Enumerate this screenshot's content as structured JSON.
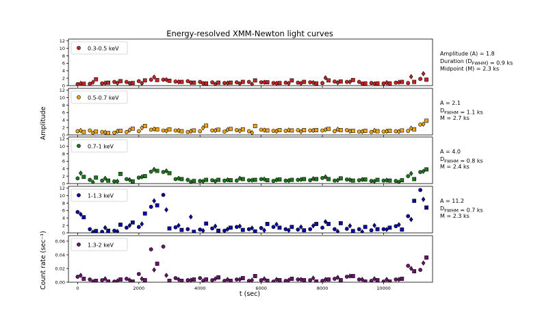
{
  "figure": {
    "title": "Energy-resolved XMM-Newton light curves",
    "xlabel": "t (sec)",
    "ylabel_upper": "Amplitude",
    "ylabel_lower": "Count rate (sec⁻¹)"
  },
  "chart_data": [
    {
      "type": "scatter",
      "legend": "0.3-0.5 keV",
      "legend_position": "top-left",
      "color": "#cc2222",
      "xlim": [
        -300,
        11600
      ],
      "ylim": [
        0,
        12.5
      ],
      "yticks": [
        "0",
        "2",
        "4",
        "6",
        "8",
        "10",
        "12"
      ],
      "annotation": [
        "Amplitude (A) = 1.8",
        "Duration (D_FWHM) = 0.9 ks",
        "Midpoint (M) = 2.3 ks"
      ],
      "series": [
        {
          "marker": "circle",
          "x": [
            0,
            400,
            800,
            1200,
            1600,
            2000,
            2400,
            2800,
            3200,
            3600,
            4000,
            4400,
            4800,
            5200,
            5600,
            6000,
            6400,
            6800,
            7200,
            7600,
            8000,
            8400,
            8800,
            9200,
            9600,
            10000,
            10400,
            10800,
            11200
          ],
          "y": [
            0.4,
            0.5,
            0.6,
            1.0,
            1.0,
            1.2,
            1.6,
            1.6,
            1.1,
            1.2,
            1.0,
            0.9,
            0.7,
            0.9,
            1.0,
            0.9,
            0.7,
            0.8,
            0.8,
            0.9,
            0.7,
            1.1,
            1.0,
            1.0,
            0.7,
            0.6,
            0.8,
            0.7,
            1.8
          ]
        },
        {
          "marker": "square",
          "x": [
            200,
            600,
            1000,
            1400,
            1800,
            2200,
            2600,
            3000,
            3400,
            3800,
            4200,
            4600,
            5000,
            5400,
            5800,
            6200,
            6600,
            7000,
            7400,
            7800,
            8200,
            8600,
            9000,
            9400,
            9800,
            10200,
            10600,
            11000,
            11400
          ],
          "y": [
            0.5,
            1.7,
            0.8,
            1.2,
            0.7,
            1.4,
            1.5,
            1.3,
            1.0,
            0.8,
            0.6,
            0.8,
            0.8,
            1.0,
            1.4,
            0.9,
            0.7,
            1.4,
            1.0,
            0.6,
            1.4,
            1.1,
            1.5,
            0.6,
            0.6,
            0.6,
            1.0,
            1.0,
            1.6
          ]
        },
        {
          "marker": "diamond",
          "x": [
            100,
            500,
            900,
            1300,
            1700,
            2100,
            2500,
            2900,
            3300,
            3700,
            4100,
            4500,
            4900,
            5300,
            5700,
            6100,
            6500,
            6900,
            7300,
            7700,
            8100,
            8500,
            8900,
            9300,
            9700,
            10100,
            10500,
            10900,
            11300
          ],
          "y": [
            0.6,
            0.9,
            0.7,
            0.7,
            0.6,
            0.6,
            2.3,
            1.6,
            1.0,
            0.8,
            0.6,
            0.4,
            0.7,
            0.5,
            0.4,
            0.9,
            0.6,
            0.6,
            0.6,
            0.8,
            2.1,
            0.8,
            1.0,
            0.5,
            0.5,
            0.8,
            0.9,
            2.4,
            3.2
          ]
        }
      ]
    },
    {
      "type": "scatter",
      "legend": "0.5-0.7 keV",
      "legend_position": "top-left",
      "color": "#f2a516",
      "xlim": [
        -300,
        11600
      ],
      "ylim": [
        0,
        12.5
      ],
      "yticks": [
        "0",
        "2",
        "4",
        "6",
        "8",
        "10",
        "12"
      ],
      "annotation": [
        "A = 2.1",
        "D_FWHM = 1.1 ks",
        "M = 2.7 ks"
      ],
      "series": [
        {
          "marker": "circle",
          "x": [
            0,
            400,
            800,
            1200,
            1600,
            2000,
            2400,
            2800,
            3200,
            3600,
            4000,
            4400,
            4800,
            5200,
            5600,
            6000,
            6400,
            6800,
            7200,
            7600,
            8000,
            8400,
            8800,
            9200,
            9600,
            10000,
            10400,
            10800,
            11200
          ],
          "y": [
            1.0,
            1.2,
            0.8,
            0.6,
            0.8,
            1.0,
            1.4,
            1.2,
            1.2,
            0.8,
            1.0,
            1.2,
            0.9,
            1.3,
            1.0,
            1.4,
            1.1,
            1.1,
            1.3,
            1.2,
            1.2,
            1.0,
            1.3,
            0.9,
            0.8,
            0.9,
            1.0,
            1.1,
            2.8
          ]
        },
        {
          "marker": "square",
          "x": [
            200,
            600,
            1000,
            1400,
            1800,
            2200,
            2600,
            3000,
            3400,
            3800,
            4200,
            4600,
            5000,
            5400,
            5800,
            6200,
            6600,
            7000,
            7400,
            7800,
            8200,
            8600,
            9000,
            9400,
            9800,
            10200,
            10600,
            11000,
            11400
          ],
          "y": [
            0.8,
            0.9,
            0.5,
            1.1,
            1.7,
            2.4,
            1.5,
            1.5,
            1.0,
            1.2,
            2.5,
            1.4,
            1.6,
            1.5,
            2.4,
            1.2,
            1.3,
            1.2,
            1.3,
            1.3,
            1.6,
            1.3,
            1.1,
            1.1,
            1.0,
            1.1,
            1.2,
            1.5,
            3.8
          ]
        },
        {
          "marker": "diamond",
          "x": [
            100,
            500,
            900,
            1300,
            1700,
            2100,
            2500,
            2900,
            3300,
            3700,
            4100,
            4500,
            4900,
            5300,
            5700,
            6100,
            6500,
            6900,
            7300,
            7700,
            8100,
            8500,
            8900,
            9300,
            9700,
            10100,
            10500,
            10900,
            11300
          ],
          "y": [
            1.2,
            0.5,
            0.7,
            1.0,
            1.3,
            1.9,
            1.6,
            1.1,
            1.2,
            1.0,
            1.9,
            1.2,
            1.4,
            1.1,
            0.6,
            1.3,
            1.0,
            1.3,
            0.9,
            1.2,
            1.4,
            1.5,
            1.0,
            0.9,
            1.2,
            1.0,
            0.9,
            1.8,
            2.9
          ]
        }
      ]
    },
    {
      "type": "scatter",
      "legend": "0.7-1 keV",
      "legend_position": "top-left",
      "color": "#1a7a1a",
      "xlim": [
        -300,
        11600
      ],
      "ylim": [
        0,
        12.5
      ],
      "yticks": [
        "0",
        "2",
        "4",
        "6",
        "8",
        "10",
        "12"
      ],
      "annotation": [
        "A = 4.0",
        "D_FWHM = 0.8 ks",
        "M = 2.4 ks"
      ],
      "series": [
        {
          "marker": "circle",
          "x": [
            0,
            400,
            800,
            1200,
            1600,
            2000,
            2400,
            2800,
            3200,
            3600,
            4000,
            4400,
            4800,
            5200,
            5600,
            6000,
            6400,
            6800,
            7200,
            7600,
            8000,
            8400,
            8800,
            9200,
            9600,
            10000,
            10400,
            10800,
            11200
          ],
          "y": [
            1.4,
            1.0,
            0.8,
            0.6,
            1.2,
            1.6,
            3.2,
            3.1,
            1.2,
            1.0,
            0.7,
            0.9,
            0.8,
            0.8,
            0.9,
            1.2,
            0.7,
            0.8,
            1.0,
            0.9,
            1.5,
            0.8,
            1.1,
            0.9,
            0.7,
            0.8,
            0.7,
            2.0,
            3.1
          ]
        },
        {
          "marker": "square",
          "x": [
            200,
            600,
            1000,
            1400,
            1800,
            2200,
            2600,
            3000,
            3400,
            3800,
            4200,
            4600,
            5000,
            5400,
            5800,
            6200,
            6600,
            7000,
            7400,
            7800,
            8200,
            8600,
            9000,
            9400,
            9800,
            10200,
            10600,
            11000,
            11400
          ],
          "y": [
            1.8,
            1.6,
            0.8,
            2.6,
            0.6,
            2.0,
            3.4,
            2.8,
            1.2,
            0.7,
            1.0,
            1.0,
            0.9,
            1.2,
            1.0,
            0.9,
            1.1,
            1.0,
            1.2,
            1.2,
            1.2,
            1.4,
            0.8,
            1.1,
            1.0,
            0.8,
            0.9,
            1.2,
            3.8
          ]
        },
        {
          "marker": "diamond",
          "x": [
            100,
            500,
            900,
            1300,
            1700,
            2100,
            2500,
            2900,
            3300,
            3700,
            4100,
            4500,
            4900,
            5300,
            5700,
            6100,
            6500,
            6900,
            7300,
            7700,
            8100,
            8500,
            8900,
            9300,
            9700,
            10100,
            10500,
            10900,
            11300
          ],
          "y": [
            2.8,
            0.4,
            1.4,
            0.6,
            1.0,
            1.8,
            3.8,
            3.4,
            1.4,
            0.4,
            0.6,
            0.6,
            1.0,
            1.4,
            0.9,
            1.2,
            1.0,
            0.8,
            1.1,
            1.3,
            1.8,
            0.9,
            1.0,
            1.1,
            0.6,
            0.9,
            0.4,
            2.7,
            3.3
          ]
        }
      ]
    },
    {
      "type": "scatter",
      "legend": "1-1.3 keV",
      "legend_position": "top-left",
      "color": "#0a0aa8",
      "xlim": [
        -300,
        11600
      ],
      "ylim": [
        0,
        12.5
      ],
      "yticks": [
        "0",
        "2",
        "4",
        "6",
        "8",
        "10",
        "12"
      ],
      "annotation": [
        "A = 11.2",
        "D_FWHM = 0.7 ks",
        "M = 2.3 ks"
      ],
      "series": [
        {
          "marker": "circle",
          "x": [
            0,
            400,
            800,
            1200,
            1600,
            2000,
            2400,
            2800,
            3200,
            3600,
            4000,
            4400,
            4800,
            5200,
            5600,
            6000,
            6400,
            6800,
            7200,
            7600,
            8000,
            8400,
            8800,
            9200,
            9600,
            10000,
            10400,
            10800,
            11200
          ],
          "y": [
            5.6,
            1.0,
            0.3,
            0.6,
            1.4,
            1.6,
            7.0,
            10.2,
            1.5,
            1.0,
            0.9,
            1.2,
            0.6,
            1.6,
            1.0,
            1.3,
            1.6,
            1.0,
            0.9,
            1.0,
            1.4,
            1.0,
            1.1,
            1.0,
            0.7,
            1.0,
            1.8,
            4.5,
            11.5
          ]
        },
        {
          "marker": "square",
          "x": [
            200,
            600,
            1000,
            1400,
            1800,
            2200,
            2600,
            3000,
            3400,
            3800,
            4200,
            4600,
            5000,
            5400,
            5800,
            6200,
            6600,
            7000,
            7400,
            7800,
            8200,
            8600,
            9000,
            9400,
            9800,
            10200,
            10600,
            11000,
            11400
          ],
          "y": [
            4.2,
            0.5,
            0.6,
            2.2,
            2.8,
            5.2,
            7.4,
            1.2,
            0.8,
            0.3,
            2.5,
            0.6,
            1.4,
            0.8,
            0.4,
            2.4,
            1.4,
            1.6,
            0.7,
            2.4,
            2.4,
            2.6,
            0.5,
            1.6,
            1.0,
            1.4,
            0.9,
            8.6,
            6.8
          ]
        },
        {
          "marker": "diamond",
          "x": [
            100,
            500,
            900,
            1300,
            1700,
            2100,
            2500,
            2900,
            3300,
            3700,
            4100,
            4500,
            4900,
            5300,
            5700,
            6100,
            6500,
            6900,
            7300,
            7700,
            8100,
            8500,
            8900,
            9300,
            9700,
            10100,
            10500,
            10900,
            11300
          ],
          "y": [
            5.0,
            0.2,
            1.4,
            0.4,
            2.0,
            2.4,
            8.6,
            6.2,
            2.0,
            4.3,
            0.6,
            1.8,
            1.0,
            1.8,
            1.3,
            0.7,
            2.3,
            0.7,
            1.6,
            1.9,
            3.0,
            0.4,
            1.9,
            0.3,
            2.0,
            0.9,
            2.2,
            3.6,
            9.0
          ]
        }
      ]
    },
    {
      "type": "scatter",
      "legend": "1.3-2 keV",
      "legend_position": "top-left",
      "color": "#6a146e",
      "xlim": [
        -300,
        11600
      ],
      "ylim": [
        0,
        0.068
      ],
      "yticks": [
        "0.00",
        "0.02",
        "0.04",
        "0.06"
      ],
      "xticks": [
        "0",
        "2000",
        "4000",
        "6000",
        "8000",
        "10000"
      ],
      "series": [
        {
          "marker": "circle",
          "x": [
            0,
            400,
            800,
            1200,
            1600,
            2000,
            2400,
            2800,
            3200,
            3600,
            4000,
            4400,
            4800,
            5200,
            5600,
            6000,
            6400,
            6800,
            7200,
            7600,
            8000,
            8400,
            8800,
            9200,
            9600,
            10000,
            10400,
            10800,
            11200
          ],
          "y": [
            0.008,
            0.004,
            0.003,
            0.001,
            0.005,
            0.012,
            0.048,
            0.052,
            0.006,
            0.003,
            0.006,
            0.003,
            0.002,
            0.004,
            0.002,
            0.003,
            0.001,
            0.002,
            0.004,
            0.003,
            0.002,
            0.005,
            0.008,
            0.004,
            0.002,
            0.001,
            0.004,
            0.024,
            0.018
          ]
        },
        {
          "marker": "square",
          "x": [
            200,
            600,
            1000,
            1400,
            1800,
            2200,
            2600,
            3000,
            3400,
            3800,
            4200,
            4600,
            5000,
            5400,
            5800,
            6200,
            6600,
            7000,
            7400,
            7800,
            8200,
            8600,
            9000,
            9400,
            9800,
            10200,
            10600,
            11000,
            11400
          ],
          "y": [
            0.005,
            0.002,
            0.001,
            0.004,
            0.001,
            0.003,
            0.027,
            0.002,
            0.002,
            0.004,
            0.004,
            0.007,
            0.002,
            0.006,
            0.009,
            0.002,
            0.003,
            0.005,
            0.003,
            0.001,
            0.004,
            0.003,
            0.009,
            0.001,
            0.003,
            0.001,
            0.005,
            0.016,
            0.036
          ]
        },
        {
          "marker": "diamond",
          "x": [
            100,
            500,
            900,
            1300,
            1700,
            2100,
            2500,
            2900,
            3300,
            3700,
            4100,
            4500,
            4900,
            5300,
            5700,
            6100,
            6500,
            6900,
            7300,
            7700,
            8100,
            8500,
            8900,
            9300,
            9700,
            10100,
            10500,
            10900,
            11300
          ],
          "y": [
            0.01,
            0.001,
            0.005,
            0.002,
            0.003,
            0.005,
            0.018,
            0.01,
            0.004,
            0.003,
            0.002,
            0.005,
            0.004,
            0.004,
            0.003,
            0.005,
            0.004,
            0.003,
            0.004,
            0.006,
            0.004,
            0.007,
            0.009,
            0.004,
            0.005,
            0.004,
            0.004,
            0.02,
            0.028
          ]
        }
      ]
    }
  ]
}
